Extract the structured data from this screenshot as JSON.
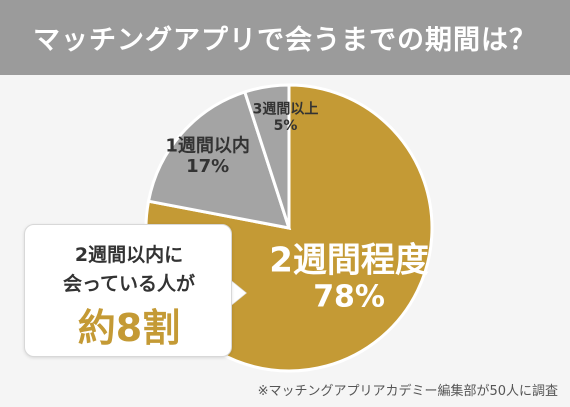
{
  "header": {
    "title": "マッチングアプリで会うまでの期間は？"
  },
  "chart_data": {
    "type": "pie",
    "categories": [
      "2週間程度",
      "1週間以内",
      "3週間以上"
    ],
    "values": [
      78,
      17,
      5
    ],
    "labels": [
      "78%",
      "17%",
      "5%"
    ],
    "colors": [
      "#c49a35",
      "#a4a4a4",
      "#a4a4a4"
    ],
    "start": "top",
    "direction": "clockwise"
  },
  "callout": {
    "line1": "2週間以内に",
    "line2": "会っている人が",
    "emphasis": "約8割"
  },
  "footnote": "※マッチングアプリアカデミー編集部が50人に調査"
}
